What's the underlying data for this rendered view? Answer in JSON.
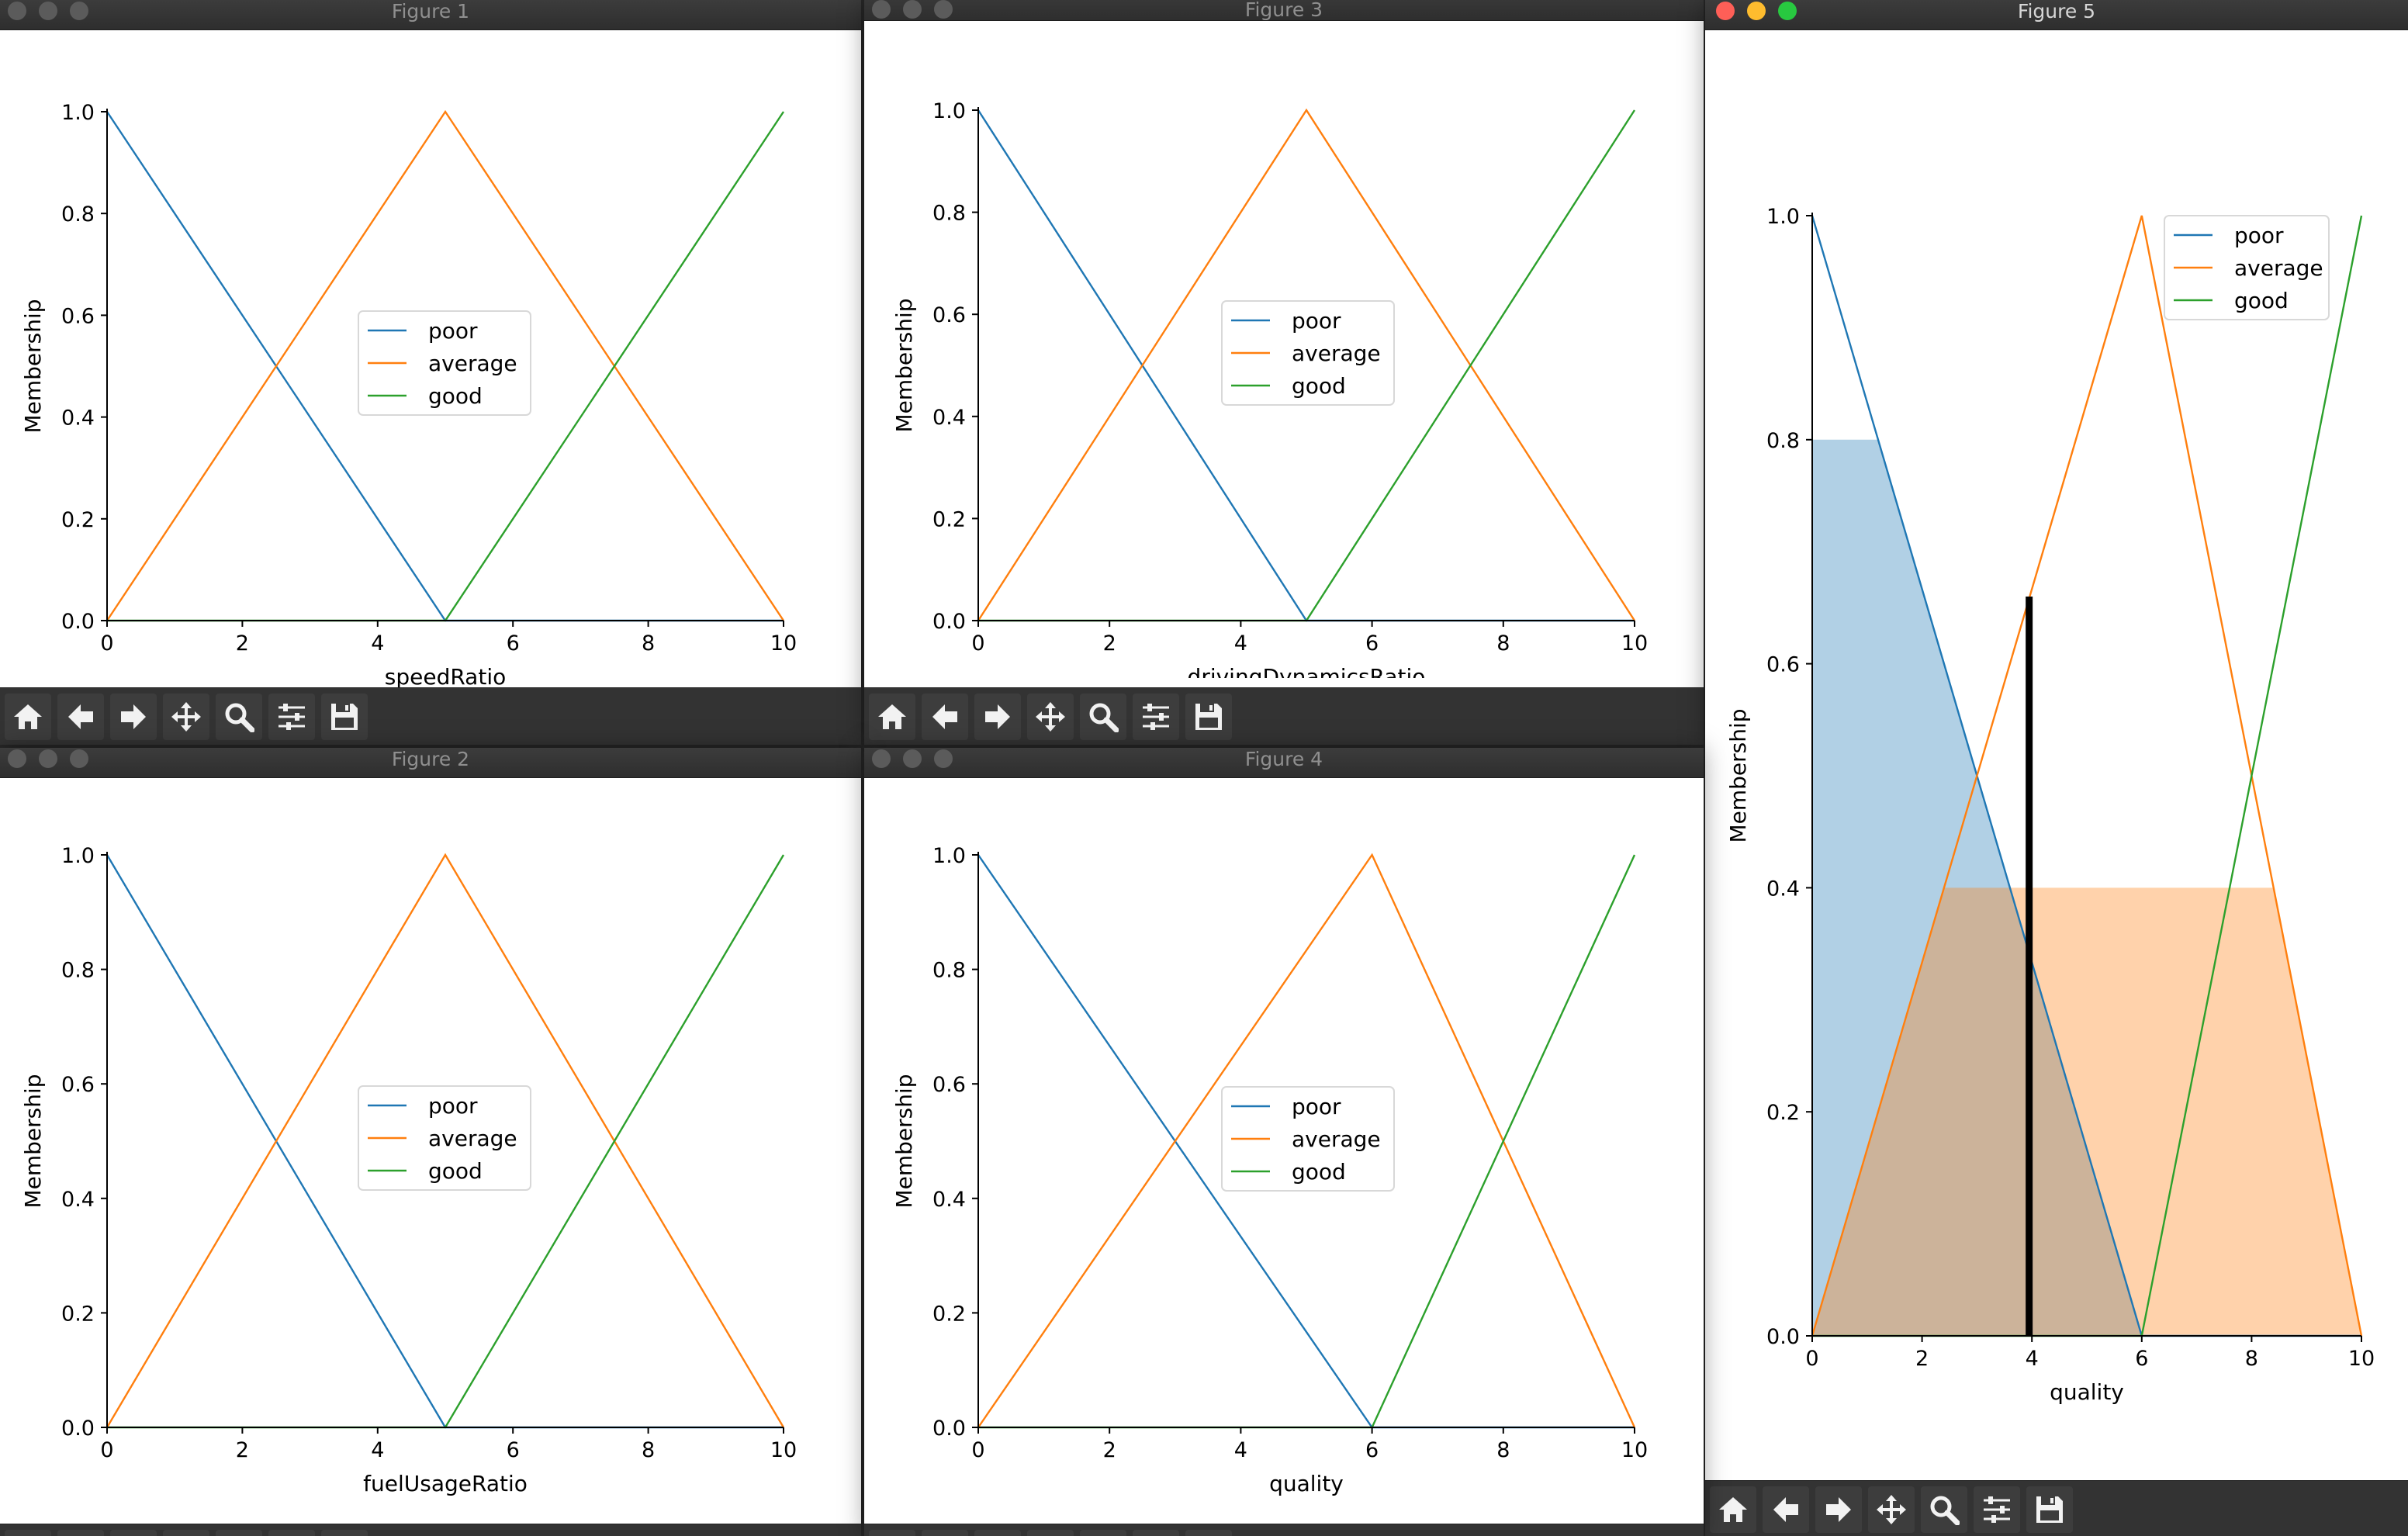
{
  "windows": [
    {
      "id": "fig1",
      "title": "Figure 1",
      "active": false
    },
    {
      "id": "fig3",
      "title": "Figure 3",
      "active": false
    },
    {
      "id": "fig5",
      "title": "Figure 5",
      "active": true
    },
    {
      "id": "fig2",
      "title": "Figure 2",
      "active": false
    },
    {
      "id": "fig4",
      "title": "Figure 4",
      "active": false
    }
  ],
  "toolbar": {
    "buttons": [
      "home-icon",
      "back-arrow-icon",
      "forward-arrow-icon",
      "pan-move-icon",
      "zoom-magnifier-icon",
      "configure-subplots-icon",
      "save-floppy-icon"
    ],
    "icon_color": "#f2f2f2",
    "background": "#333333"
  },
  "colors": {
    "poor": "#1f77b4",
    "average": "#ff7f0e",
    "good": "#2ca02c"
  },
  "chart_data": [
    {
      "type": "line",
      "window": "fig1",
      "xlabel": "speedRatio",
      "ylabel": "Membership",
      "xlim": [
        0,
        10
      ],
      "ylim": [
        0,
        1.0
      ],
      "xticks": [
        "0",
        "2",
        "4",
        "6",
        "8",
        "10"
      ],
      "yticks": [
        "0.0",
        "0.2",
        "0.4",
        "0.6",
        "0.8",
        "1.0"
      ],
      "legend": {
        "placement": "center"
      },
      "series": [
        {
          "name": "poor",
          "x": [
            0,
            5,
            10
          ],
          "y": [
            1,
            0,
            0
          ]
        },
        {
          "name": "average",
          "x": [
            0,
            5,
            10
          ],
          "y": [
            0,
            1,
            0
          ]
        },
        {
          "name": "good",
          "x": [
            0,
            5,
            10
          ],
          "y": [
            0,
            0,
            1
          ]
        }
      ]
    },
    {
      "type": "line",
      "window": "fig3",
      "xlabel": "drivingDynamicsRatio",
      "ylabel": "Membership",
      "xlim": [
        0,
        10
      ],
      "ylim": [
        0,
        1.0
      ],
      "xticks": [
        "0",
        "2",
        "4",
        "6",
        "8",
        "10"
      ],
      "yticks": [
        "0.0",
        "0.2",
        "0.4",
        "0.6",
        "0.8",
        "1.0"
      ],
      "legend": {
        "placement": "center"
      },
      "series": [
        {
          "name": "poor",
          "x": [
            0,
            5,
            10
          ],
          "y": [
            1,
            0,
            0
          ]
        },
        {
          "name": "average",
          "x": [
            0,
            5,
            10
          ],
          "y": [
            0,
            1,
            0
          ]
        },
        {
          "name": "good",
          "x": [
            0,
            5,
            10
          ],
          "y": [
            0,
            0,
            1
          ]
        }
      ]
    },
    {
      "type": "area",
      "window": "fig5",
      "xlabel": "quality",
      "ylabel": "Membership",
      "xlim": [
        0,
        10
      ],
      "ylim": [
        0,
        1.0
      ],
      "xticks": [
        "0",
        "2",
        "4",
        "6",
        "8",
        "10"
      ],
      "yticks": [
        "0.0",
        "0.2",
        "0.4",
        "0.6",
        "0.8",
        "1.0"
      ],
      "legend": {
        "placement": "top-right"
      },
      "series": [
        {
          "name": "poor",
          "x": [
            0,
            6,
            10
          ],
          "y": [
            1,
            0,
            0
          ]
        },
        {
          "name": "average",
          "x": [
            0,
            6,
            10
          ],
          "y": [
            0,
            1,
            0
          ]
        },
        {
          "name": "good",
          "x": [
            0,
            6,
            10
          ],
          "y": [
            0,
            0,
            1
          ]
        }
      ],
      "activation": [
        {
          "series": "poor",
          "x": [
            0,
            1.2,
            6,
            10
          ],
          "y": [
            0.8,
            0.8,
            0,
            0
          ]
        },
        {
          "series": "average",
          "x": [
            0,
            2.4,
            8.4,
            10
          ],
          "y": [
            0,
            0.4,
            0.4,
            0
          ]
        }
      ],
      "defuzzified": {
        "x": 3.95,
        "y": 0.66
      }
    },
    {
      "type": "line",
      "window": "fig2",
      "xlabel": "fuelUsageRatio",
      "ylabel": "Membership",
      "xlim": [
        0,
        10
      ],
      "ylim": [
        0,
        1.0
      ],
      "xticks": [
        "0",
        "2",
        "4",
        "6",
        "8",
        "10"
      ],
      "yticks": [
        "0.0",
        "0.2",
        "0.4",
        "0.6",
        "0.8",
        "1.0"
      ],
      "legend": {
        "placement": "center"
      },
      "series": [
        {
          "name": "poor",
          "x": [
            0,
            5,
            10
          ],
          "y": [
            1,
            0,
            0
          ]
        },
        {
          "name": "average",
          "x": [
            0,
            5,
            10
          ],
          "y": [
            0,
            1,
            0
          ]
        },
        {
          "name": "good",
          "x": [
            0,
            5,
            10
          ],
          "y": [
            0,
            0,
            1
          ]
        }
      ]
    },
    {
      "type": "line",
      "window": "fig4",
      "xlabel": "quality",
      "ylabel": "Membership",
      "xlim": [
        0,
        10
      ],
      "ylim": [
        0,
        1.0
      ],
      "xticks": [
        "0",
        "2",
        "4",
        "6",
        "8",
        "10"
      ],
      "yticks": [
        "0.0",
        "0.2",
        "0.4",
        "0.6",
        "0.8",
        "1.0"
      ],
      "legend": {
        "placement": "center"
      },
      "series": [
        {
          "name": "poor",
          "x": [
            0,
            6,
            10
          ],
          "y": [
            1,
            0,
            0
          ]
        },
        {
          "name": "average",
          "x": [
            0,
            6,
            10
          ],
          "y": [
            0,
            1,
            0
          ]
        },
        {
          "name": "good",
          "x": [
            0,
            6,
            10
          ],
          "y": [
            0,
            0,
            1
          ]
        }
      ]
    }
  ]
}
